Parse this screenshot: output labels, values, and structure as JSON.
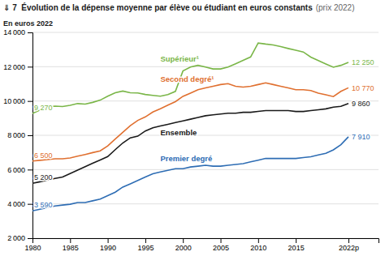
{
  "chart_data": {
    "type": "line",
    "title": "⇓ 7  Évolution de la dépense moyenne par élève ou étudiant en euros constants",
    "subtitle": "(prix 2022)",
    "ylabel": "En euros 2022",
    "x": [
      1980,
      1981,
      1982,
      1983,
      1984,
      1985,
      1986,
      1987,
      1988,
      1989,
      1990,
      1991,
      1992,
      1993,
      1994,
      1995,
      1996,
      1997,
      1998,
      1999,
      2000,
      2001,
      2002,
      2003,
      2004,
      2005,
      2006,
      2007,
      2008,
      2009,
      2010,
      2011,
      2012,
      2013,
      2014,
      2015,
      2016,
      2017,
      2018,
      2019,
      2020,
      2021,
      2022
    ],
    "series": [
      {
        "name": "Supérieur¹",
        "color": "#7ab648",
        "values": [
          9270,
          9480,
          9650,
          9700,
          9680,
          9750,
          9850,
          9820,
          9920,
          10050,
          10280,
          10480,
          10580,
          10480,
          10470,
          10380,
          10330,
          10280,
          10370,
          10560,
          11750,
          11980,
          12080,
          11980,
          11870,
          11870,
          11980,
          12170,
          12370,
          12570,
          13380,
          13320,
          13270,
          13170,
          13060,
          12960,
          12860,
          12560,
          12360,
          12160,
          11970,
          12080,
          12250
        ],
        "value_labels": [
          "9 270",
          null,
          null,
          null,
          null,
          null,
          null,
          null,
          null,
          null,
          null,
          null,
          null,
          null,
          null,
          null,
          null,
          null,
          null,
          null,
          null,
          null,
          null,
          null,
          null,
          null,
          null,
          null,
          null,
          null,
          null,
          null,
          null,
          null,
          null,
          null,
          null,
          null,
          null,
          null,
          null,
          null,
          "12 250"
        ]
      },
      {
        "name": "Second degré¹",
        "color": "#e07030",
        "values": [
          6500,
          6540,
          6580,
          6630,
          6630,
          6680,
          6780,
          6880,
          6990,
          7090,
          7380,
          7780,
          8170,
          8560,
          8870,
          9070,
          9360,
          9550,
          9760,
          9960,
          10270,
          10460,
          10660,
          10760,
          10860,
          10960,
          11010,
          10860,
          10810,
          10860,
          10960,
          11060,
          10960,
          10860,
          10760,
          10660,
          10660,
          10610,
          10460,
          10360,
          10260,
          10560,
          10770
        ],
        "value_labels": [
          "6 500",
          null,
          null,
          null,
          null,
          null,
          null,
          null,
          null,
          null,
          null,
          null,
          null,
          null,
          null,
          null,
          null,
          null,
          null,
          null,
          null,
          null,
          null,
          null,
          null,
          null,
          null,
          null,
          null,
          null,
          null,
          null,
          null,
          null,
          null,
          null,
          null,
          null,
          null,
          null,
          null,
          null,
          "10 770"
        ]
      },
      {
        "name": "Ensemble",
        "color": "#1a1a1a",
        "values": [
          5200,
          5290,
          5390,
          5480,
          5570,
          5770,
          5970,
          6170,
          6370,
          6560,
          6760,
          7160,
          7550,
          7850,
          7950,
          8250,
          8440,
          8540,
          8640,
          8740,
          8840,
          8940,
          9040,
          9140,
          9190,
          9240,
          9290,
          9290,
          9340,
          9340,
          9390,
          9440,
          9440,
          9440,
          9440,
          9390,
          9390,
          9440,
          9490,
          9540,
          9640,
          9690,
          9860
        ],
        "value_labels": [
          "5 200",
          null,
          null,
          null,
          null,
          null,
          null,
          null,
          null,
          null,
          null,
          null,
          null,
          null,
          null,
          null,
          null,
          null,
          null,
          null,
          null,
          null,
          null,
          null,
          null,
          null,
          null,
          null,
          null,
          null,
          null,
          null,
          null,
          null,
          null,
          null,
          null,
          null,
          null,
          null,
          null,
          null,
          "9 860"
        ]
      },
      {
        "name": "Premier degré",
        "color": "#2e6db4",
        "values": [
          3590,
          3690,
          3790,
          3880,
          3930,
          3980,
          4080,
          4080,
          4180,
          4280,
          4480,
          4680,
          4980,
          5170,
          5370,
          5570,
          5760,
          5860,
          5960,
          6050,
          6050,
          6150,
          6200,
          6250,
          6200,
          6200,
          6250,
          6300,
          6350,
          6450,
          6550,
          6650,
          6650,
          6650,
          6650,
          6650,
          6700,
          6750,
          6850,
          6950,
          7150,
          7450,
          7910
        ],
        "value_labels": [
          "3 590",
          null,
          null,
          null,
          null,
          null,
          null,
          null,
          null,
          null,
          null,
          null,
          null,
          null,
          null,
          null,
          null,
          null,
          null,
          null,
          null,
          null,
          null,
          null,
          null,
          null,
          null,
          null,
          null,
          null,
          null,
          null,
          null,
          null,
          null,
          null,
          null,
          null,
          null,
          null,
          null,
          null,
          "7 910"
        ]
      }
    ],
    "xlim": [
      1980,
      2026
    ],
    "xticks": [
      1980,
      1985,
      1990,
      1995,
      2000,
      2005,
      2010,
      2015,
      {
        "value": 2022,
        "label": "2022p"
      }
    ],
    "ylim": [
      2000,
      14000
    ],
    "yticks": [
      {
        "value": 2000,
        "label": "2 000"
      },
      {
        "value": 4000,
        "label": "4 000"
      },
      {
        "value": 6000,
        "label": "6 000"
      },
      {
        "value": 8000,
        "label": "8 000"
      },
      {
        "value": 10000,
        "label": "10 000"
      },
      {
        "value": 12000,
        "label": "12 000"
      },
      {
        "value": 14000,
        "label": "14 000"
      }
    ],
    "grid": true
  }
}
